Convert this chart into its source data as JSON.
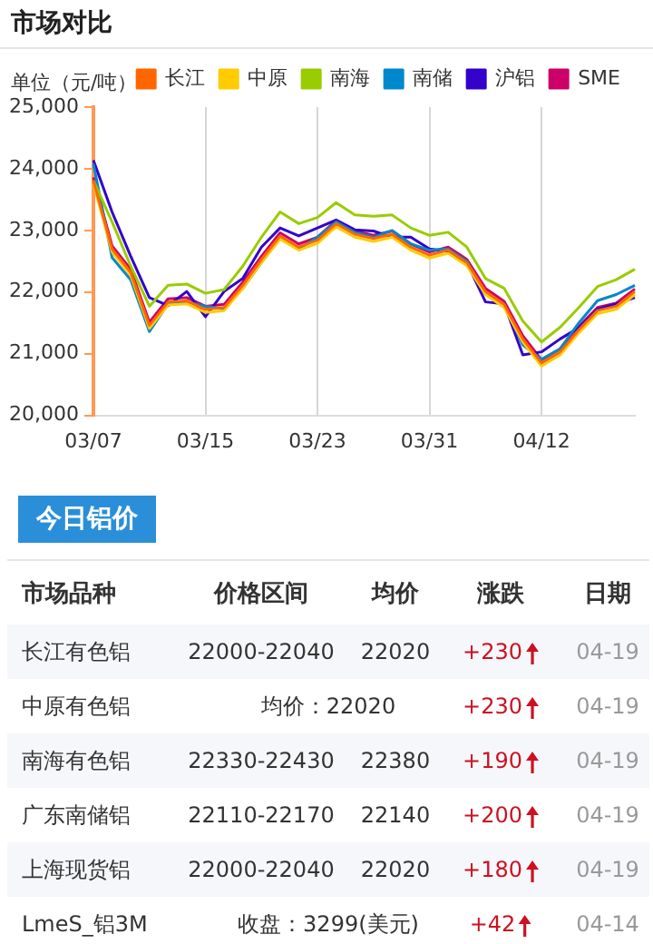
{
  "chart_data": [
    {
      "type": "line",
      "title": "市场对比",
      "ylabel": "单位（元/吨）",
      "categories": [
        "03/07",
        null,
        null,
        null,
        null,
        null,
        "03/15",
        null,
        null,
        null,
        null,
        null,
        "03/23",
        null,
        null,
        null,
        null,
        null,
        "03/31",
        null,
        null,
        null,
        null,
        null,
        "04/12",
        null,
        null,
        null,
        null,
        null
      ],
      "series": [
        {
          "name": "长江",
          "color": "#ff6600",
          "values": [
            23810,
            22700,
            22320,
            21460,
            21840,
            21860,
            21720,
            21750,
            22110,
            22530,
            22910,
            22730,
            22840,
            23110,
            22940,
            22870,
            22940,
            22730,
            22600,
            22680,
            22480,
            22010,
            21800,
            21240,
            20850,
            21030,
            21390,
            21700,
            21770,
            22010
          ]
        },
        {
          "name": "中原",
          "color": "#ffcc00",
          "values": [
            23760,
            22650,
            22270,
            21410,
            21790,
            21810,
            21670,
            21700,
            22060,
            22480,
            22860,
            22680,
            22790,
            23060,
            22890,
            22820,
            22890,
            22680,
            22550,
            22630,
            22430,
            21960,
            21750,
            21190,
            20800,
            20980,
            21340,
            21650,
            21720,
            21960
          ]
        },
        {
          "name": "南海",
          "color": "#99cc00",
          "values": [
            23810,
            23140,
            22420,
            21770,
            22110,
            22130,
            21980,
            22040,
            22420,
            22890,
            23300,
            23110,
            23210,
            23450,
            23250,
            23230,
            23250,
            23040,
            22920,
            22970,
            22730,
            22220,
            22060,
            21530,
            21190,
            21430,
            21750,
            22090,
            22200,
            22370
          ]
        },
        {
          "name": "南储",
          "color": "#0088cc",
          "values": [
            24080,
            22560,
            22200,
            21360,
            21810,
            21840,
            21770,
            21730,
            22060,
            22480,
            22870,
            22700,
            22890,
            23140,
            22970,
            22890,
            23000,
            22780,
            22680,
            22700,
            22500,
            21980,
            21800,
            21140,
            20910,
            21080,
            21500,
            21860,
            21960,
            22110
          ]
        },
        {
          "name": "沪铝",
          "color": "#3300cc",
          "values": [
            24140,
            23300,
            22580,
            21910,
            21780,
            22010,
            21600,
            22010,
            22220,
            22730,
            23040,
            22910,
            23040,
            23170,
            23010,
            22990,
            22890,
            22890,
            22700,
            22660,
            22480,
            21840,
            21810,
            20980,
            21030,
            21240,
            21420,
            21720,
            21810,
            21910
          ]
        },
        {
          "name": "SME",
          "color": "#cc0066",
          "values": [
            23860,
            22750,
            22370,
            21510,
            21890,
            21910,
            21770,
            21800,
            22160,
            22580,
            22960,
            22780,
            22890,
            23160,
            22990,
            22920,
            22990,
            22780,
            22650,
            22730,
            22530,
            22060,
            21850,
            21290,
            20900,
            21080,
            21440,
            21750,
            21820,
            22050
          ]
        }
      ],
      "ylim": [
        20000,
        25000
      ],
      "yticks": [
        {
          "value": 20000,
          "label": "20,000"
        },
        {
          "value": 21000,
          "label": "21,000"
        },
        {
          "value": 22000,
          "label": "22,000"
        },
        {
          "value": 23000,
          "label": "23,000"
        },
        {
          "value": 24000,
          "label": "24,000"
        },
        {
          "value": 25000,
          "label": "25,000"
        }
      ],
      "grid": "x",
      "legend": "top right",
      "marker": "none",
      "line_style": "solid"
    },
    {
      "type": "other",
      "title": "今日铝价",
      "categories": [
        "市场品种",
        "价格区间",
        "均价",
        "涨跌",
        "日期"
      ],
      "y_categories": [
        "长江有色铝",
        "中原有色铝",
        "南海有色铝",
        "广东南储铝",
        "上海现货铝",
        "LmeS_铝3M"
      ],
      "cell_labels": [
        [
          "22000-22040",
          "22020",
          "+230",
          "04-19"
        ],
        [
          "均价：22020",
          null,
          "+230",
          "04-19"
        ],
        [
          "22330-22430",
          "22380",
          "+190",
          "04-19"
        ],
        [
          "22110-22170",
          "22140",
          "+200",
          "04-19"
        ],
        [
          "22000-22040",
          "22020",
          "+180",
          "04-19"
        ],
        [
          "收盘：3299(美元)",
          null,
          "+42",
          "04-14"
        ]
      ]
    }
  ]
}
